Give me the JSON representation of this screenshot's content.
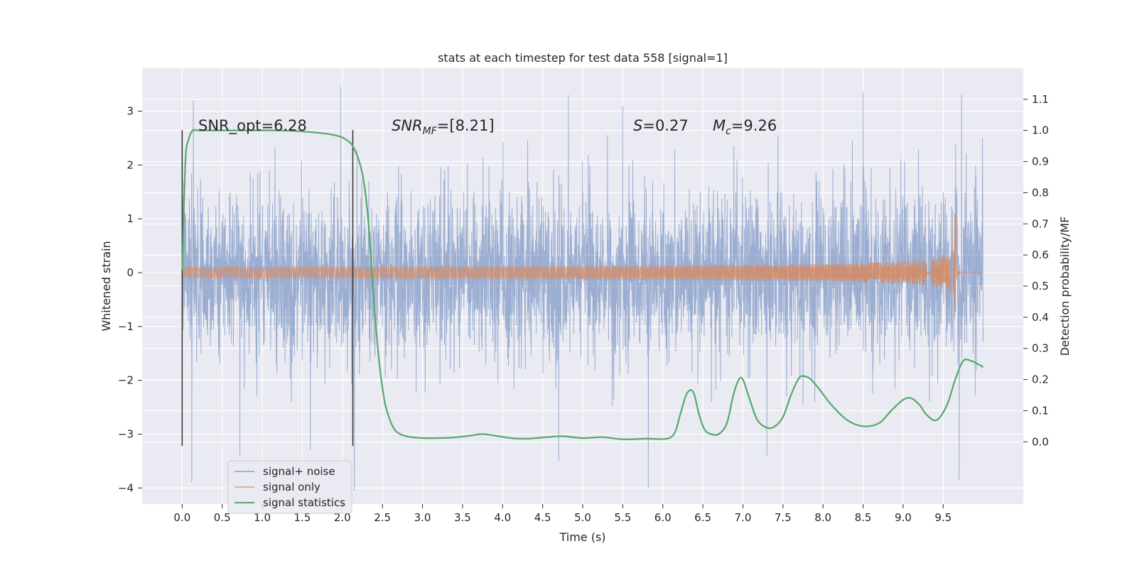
{
  "chart_data": {
    "type": "line",
    "title": "stats at each timestep for test data 558 [signal=1]",
    "xlabel": "Time (s)",
    "ylabel": "Whitened strain",
    "y2label": "Detection probability/MF",
    "xlim": [
      -0.5,
      10.5
    ],
    "ylim": [
      -4.3,
      3.8
    ],
    "y2lim": [
      -0.2,
      1.2
    ],
    "x_ticks": [
      0.0,
      0.5,
      1.0,
      1.5,
      2.0,
      2.5,
      3.0,
      3.5,
      4.0,
      4.5,
      5.0,
      5.5,
      6.0,
      6.5,
      7.0,
      7.5,
      8.0,
      8.5,
      9.0,
      9.5
    ],
    "x_tick_labels": [
      "0.0",
      "0.5",
      "1.0",
      "1.5",
      "2.0",
      "2.5",
      "3.0",
      "3.5",
      "4.0",
      "4.5",
      "5.0",
      "5.5",
      "6.0",
      "6.5",
      "7.0",
      "7.5",
      "8.0",
      "8.5",
      "9.0",
      "9.5"
    ],
    "y_ticks": [
      3,
      2,
      1,
      0,
      -1,
      -2,
      -3,
      -4
    ],
    "y_tick_labels": [
      "3",
      "2",
      "1",
      "0",
      "−1",
      "−2",
      "−3",
      "−4"
    ],
    "y2_ticks": [
      1.1,
      1.0,
      0.9,
      0.8,
      0.7,
      0.6,
      0.5,
      0.4,
      0.3,
      0.2,
      0.1,
      0.0
    ],
    "y2_tick_labels": [
      "1.1",
      "1.0",
      "0.9",
      "0.8",
      "0.7",
      "0.6",
      "0.5",
      "0.4",
      "0.3",
      "0.2",
      "0.1",
      "0.0"
    ],
    "grid": true,
    "legend_placement": "lower-left",
    "colors": {
      "noise": "#4c72b0",
      "signal": "#dd8452",
      "stats": "#55a868",
      "vline": "#333333",
      "background": "#eaeaf2"
    },
    "noise": {
      "t_start": 0.0,
      "t_end": 10.0,
      "envelope": 2.3,
      "samples": 4096,
      "peaks": [
        {
          "x": 0.14,
          "y": 3.2
        },
        {
          "x": 0.12,
          "y": -3.9
        },
        {
          "x": 1.98,
          "y": 3.45
        },
        {
          "x": 2.15,
          "y": -4.05
        },
        {
          "x": 4.82,
          "y": 3.3
        },
        {
          "x": 4.7,
          "y": -3.5
        },
        {
          "x": 5.82,
          "y": -4.0
        },
        {
          "x": 9.7,
          "y": -3.85
        },
        {
          "x": 9.73,
          "y": 3.3
        },
        {
          "x": 8.5,
          "y": 3.35
        },
        {
          "x": 7.3,
          "y": -3.4
        },
        {
          "x": 0.72,
          "y": -3.4
        },
        {
          "x": 1.6,
          "y": -3.3
        },
        {
          "x": 5.5,
          "y": 3.1
        },
        {
          "x": 9.99,
          "y": 2.5
        }
      ]
    },
    "signal": {
      "t_start": 0.0,
      "t_merge": 9.66,
      "t_end": 10.0,
      "peak_pos": 1.1,
      "peak_neg": -0.72
    },
    "vlines": [
      {
        "x": 0.0,
        "y_range": [
          -3.22,
          2.65
        ]
      },
      {
        "x": 2.13,
        "y_range": [
          -3.22,
          2.65
        ]
      }
    ],
    "series": [
      {
        "name": "signal+ noise",
        "style": "noise"
      },
      {
        "name": "signal only",
        "style": "signal"
      },
      {
        "name": "signal statistics",
        "style": "stats",
        "axis": "y2",
        "x": [
          0.0,
          0.04,
          0.08,
          0.13,
          0.2,
          0.4,
          0.8,
          1.2,
          1.6,
          1.9,
          2.05,
          2.15,
          2.25,
          2.32,
          2.38,
          2.45,
          2.52,
          2.58,
          2.65,
          2.72,
          2.8,
          2.9,
          3.0,
          3.2,
          3.4,
          3.6,
          3.75,
          3.9,
          4.1,
          4.3,
          4.55,
          4.75,
          5.0,
          5.25,
          5.5,
          5.8,
          6.05,
          6.15,
          6.22,
          6.3,
          6.38,
          6.45,
          6.52,
          6.6,
          6.7,
          6.8,
          6.88,
          6.95,
          7.0,
          7.08,
          7.18,
          7.3,
          7.4,
          7.5,
          7.6,
          7.7,
          7.78,
          7.85,
          7.95,
          8.1,
          8.3,
          8.5,
          8.7,
          8.85,
          9.0,
          9.1,
          9.2,
          9.3,
          9.42,
          9.55,
          9.65,
          9.75,
          9.85,
          9.93,
          10.0
        ],
        "y": [
          0.55,
          0.9,
          0.97,
          1.0,
          1.0,
          1.0,
          1.0,
          1.0,
          0.995,
          0.985,
          0.97,
          0.94,
          0.86,
          0.72,
          0.5,
          0.28,
          0.14,
          0.08,
          0.04,
          0.025,
          0.018,
          0.014,
          0.012,
          0.012,
          0.014,
          0.02,
          0.025,
          0.02,
          0.012,
          0.01,
          0.015,
          0.018,
          0.012,
          0.015,
          0.008,
          0.01,
          0.01,
          0.03,
          0.09,
          0.155,
          0.16,
          0.09,
          0.04,
          0.025,
          0.025,
          0.06,
          0.15,
          0.2,
          0.2,
          0.14,
          0.07,
          0.045,
          0.05,
          0.08,
          0.15,
          0.205,
          0.21,
          0.2,
          0.17,
          0.12,
          0.07,
          0.05,
          0.06,
          0.1,
          0.135,
          0.14,
          0.12,
          0.085,
          0.07,
          0.12,
          0.2,
          0.26,
          0.26,
          0.25,
          0.24
        ]
      }
    ],
    "annotations": {
      "snr_opt": "SNR_opt=6.28",
      "snr_mf_italic": "SNR",
      "snr_mf_sub": "MF",
      "snr_mf_rest": "=[8.21]",
      "s_italic": "S",
      "s_rest": "=0.27",
      "mc_italic": "M",
      "mc_sub": "c",
      "mc_rest": "=9.26"
    }
  }
}
